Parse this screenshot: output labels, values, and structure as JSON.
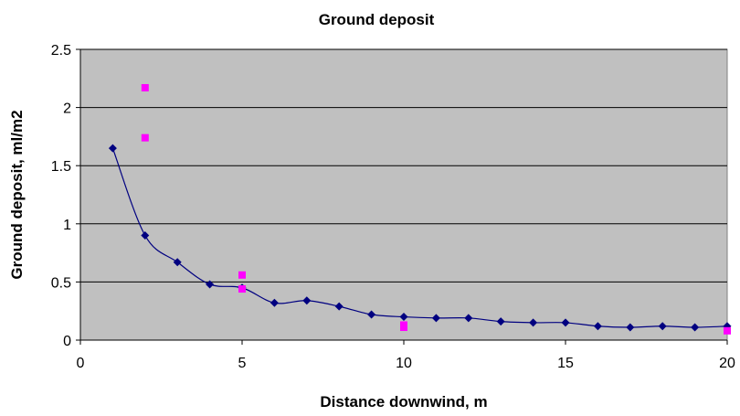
{
  "chart_data": {
    "type": "scatter",
    "title": "Ground deposit",
    "xlabel": "Distance downwind, m",
    "ylabel": "Ground deposit, ml/m2",
    "xlim": [
      0,
      20
    ],
    "ylim": [
      0,
      2.5
    ],
    "x_ticks": [
      "0",
      "5",
      "10",
      "15",
      "20"
    ],
    "y_ticks": [
      "0",
      "0.5",
      "1",
      "1.5",
      "2",
      "2.5"
    ],
    "grid": "horizontal",
    "plot_background": "#C0C0C0",
    "legend": "none",
    "series": [
      {
        "style": "smoothed line with diamond markers",
        "color": "#000080",
        "points": [
          [
            1,
            1.65
          ],
          [
            2,
            0.9
          ],
          [
            3,
            0.67
          ],
          [
            4,
            0.48
          ],
          [
            5,
            0.45
          ],
          [
            6,
            0.32
          ],
          [
            7,
            0.34
          ],
          [
            8,
            0.29
          ],
          [
            9,
            0.22
          ],
          [
            10,
            0.2
          ],
          [
            11,
            0.19
          ],
          [
            12,
            0.19
          ],
          [
            13,
            0.16
          ],
          [
            14,
            0.15
          ],
          [
            15,
            0.15
          ],
          [
            16,
            0.12
          ],
          [
            17,
            0.11
          ],
          [
            18,
            0.12
          ],
          [
            19,
            0.11
          ],
          [
            20,
            0.12
          ]
        ]
      },
      {
        "style": "square markers",
        "color": "#FF00FF",
        "points": [
          [
            2,
            2.17
          ],
          [
            2,
            1.74
          ],
          [
            5,
            0.56
          ],
          [
            5,
            0.44
          ],
          [
            10,
            0.13
          ],
          [
            10,
            0.11
          ],
          [
            20,
            0.08
          ]
        ]
      }
    ]
  }
}
